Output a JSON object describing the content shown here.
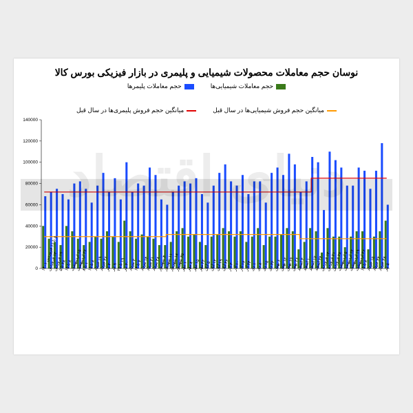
{
  "title": "نوسان حجم معاملات محصولات شیمیایی و پلیمری در بازار فیزیکی بورس کالا",
  "legend": {
    "polymer_vol": "حجم معاملات پلیمرها",
    "chemical_vol": "حجم معاملات شیمیایی‌ها",
    "polymer_avg": "میانگین حجم فروش پلیمری‌ها در سال قبل",
    "chemical_avg": "میانگین حجم فروش شیمیایی‌ها در سال قبل"
  },
  "chart": {
    "type": "bar",
    "background_color": "#ffffff",
    "ylim": [
      0,
      140000
    ],
    "ytick_step": 20000,
    "yticks": [
      0,
      20000,
      40000,
      60000,
      80000,
      100000,
      120000,
      140000
    ],
    "axis_fontsize": 6.5,
    "xlabel_fontsize": 6,
    "colors": {
      "polymer_bar": "#1a4cff",
      "chemical_bar": "#3a7a1a",
      "polymer_line": "#e00000",
      "chemical_line": "#ff9900",
      "axis": "#000000"
    },
    "watermark_text": "دنیای اقتصاد",
    "categories": [
      "۵ تا ۱۱ فروردین ۱۴۰۱",
      "۱۲ فروردین",
      "۱۹ فروردین",
      "۲۸ تا ۵",
      "۸ تا ۱۵",
      "۱۵ اردیبهشت",
      "۲۲ اردیبهشت",
      "۱ تا ۸",
      "۸ تا ۱۵",
      "۱۹ خرداد",
      "۲۶ خرداد",
      "۲ تیر",
      "۹ تیر",
      "۱۹ تا ۲۵",
      "۳۰ تیر",
      "۲ مرداد",
      "۷ تا ۱۴",
      "۱۴ مرداد",
      "۲۱ مرداد",
      "۲۸ مرداد",
      "۴ شهریور",
      "۱۱ شهریور",
      "۱۸ شهریور",
      "۲۵ شهریور",
      "۱ مهر",
      "۸ مهر",
      "۱۵ مهر",
      "۲۲ مهر",
      "۵ آبان",
      "۱۲ آبان",
      "۱۹ آبان",
      "۲۶ آبان",
      "۳ آذر",
      "۱۰ آذر",
      "۱۷ آذر",
      "۲۴ آذر",
      "۱ دی",
      "۸ دی",
      "۱۵ دی",
      "۲۲ دی",
      "۶ بهمن",
      "۱۲ بهمن",
      "۱۹ بهمن",
      "۲۶ بهمن",
      "۳ اسفند",
      "۱۰ اسفند",
      "۱۷ اسفند",
      "۲۴ اسفند",
      "۱۴ فروردین",
      "۲۱ فروردین",
      "۲۸ فروردین",
      "۵ اردیبهشت",
      "۱۲ اردیبهشت",
      "۱۹ اردیبهشت",
      "۲۶ اردیبهشت",
      "۸ تا ۱۵",
      "۱۵ خرداد",
      "۲۲ خرداد",
      "۲۸ خرداد",
      "۵ تیر"
    ],
    "polymer_values": [
      68000,
      72000,
      75000,
      70000,
      65000,
      80000,
      82000,
      75000,
      62000,
      78000,
      90000,
      72000,
      85000,
      65000,
      100000,
      72000,
      80000,
      78000,
      95000,
      88000,
      65000,
      60000,
      72000,
      78000,
      82000,
      80000,
      85000,
      70000,
      62000,
      78000,
      90000,
      98000,
      82000,
      78000,
      88000,
      70000,
      82000,
      82000,
      62000,
      90000,
      95000,
      88000,
      108000,
      98000,
      72000,
      82000,
      105000,
      100000,
      55000,
      110000,
      102000,
      95000,
      78000,
      78000,
      95000,
      92000,
      75000,
      92000,
      118000,
      60000
    ],
    "chemical_values": [
      40000,
      28000,
      25000,
      22000,
      40000,
      35000,
      28000,
      22000,
      25000,
      30000,
      28000,
      35000,
      30000,
      25000,
      45000,
      35000,
      28000,
      32000,
      30000,
      28000,
      22000,
      22000,
      25000,
      35000,
      38000,
      30000,
      32000,
      25000,
      22000,
      30000,
      32000,
      38000,
      35000,
      30000,
      35000,
      25000,
      30000,
      38000,
      22000,
      30000,
      30000,
      32000,
      38000,
      35000,
      18000,
      25000,
      38000,
      35000,
      15000,
      38000,
      30000,
      30000,
      20000,
      30000,
      35000,
      35000,
      18000,
      30000,
      35000,
      45000
    ],
    "polymer_avg_line": [
      {
        "x_index": 0,
        "y": 72000
      },
      {
        "x_index": 46,
        "y": 72000
      },
      {
        "x_index": 46,
        "y": 85000
      },
      {
        "x_index": 59,
        "y": 85000
      }
    ],
    "chemical_avg_line": [
      {
        "x_index": 0,
        "y": 30000
      },
      {
        "x_index": 21,
        "y": 30000
      },
      {
        "x_index": 21,
        "y": 32000
      },
      {
        "x_index": 44,
        "y": 32000
      },
      {
        "x_index": 44,
        "y": 28000
      },
      {
        "x_index": 59,
        "y": 28000
      }
    ]
  }
}
